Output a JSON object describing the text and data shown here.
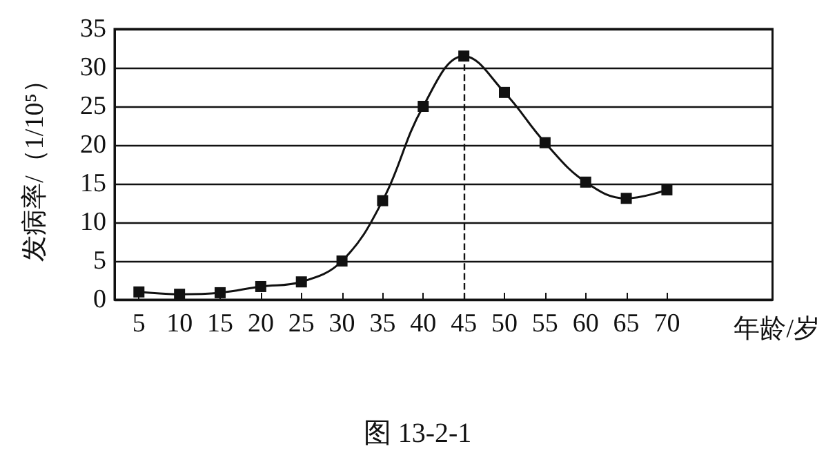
{
  "chart_data": {
    "type": "line",
    "xlabel": "年龄/岁",
    "ylabel": "发病率/（1/10⁵）",
    "annotations": [
      "图 13-2-1"
    ],
    "x": [
      5,
      10,
      15,
      20,
      25,
      30,
      35,
      40,
      45,
      50,
      55,
      60,
      65,
      70
    ],
    "series": [
      {
        "color": "#111111",
        "values": [
          1,
          0.7,
          0.9,
          1.7,
          2.3,
          5,
          12.8,
          25,
          31.5,
          26.8,
          20.3,
          15.2,
          13.1,
          14.2
        ]
      }
    ],
    "xlim": [
      2,
      83
    ],
    "xticks": [
      5,
      10,
      15,
      20,
      25,
      30,
      35,
      40,
      45,
      50,
      55,
      60,
      65,
      70
    ],
    "ylim": [
      0,
      35
    ],
    "yticks": [
      0,
      5,
      10,
      15,
      20,
      25,
      30,
      35
    ],
    "grid": "y",
    "marker": "square",
    "line_style": "solid",
    "ref_lines": [
      {
        "axis": "x",
        "value": 45,
        "line_style": "dashed"
      }
    ]
  }
}
